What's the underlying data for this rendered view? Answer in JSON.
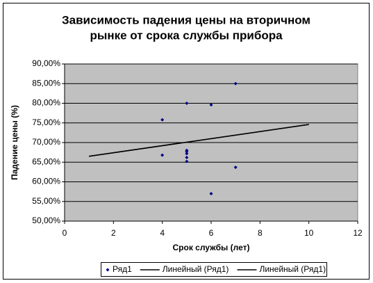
{
  "chart_data": {
    "type": "scatter",
    "title": [
      "Зависимость падения цены на вторичном",
      "рынке от срока службы прибора"
    ],
    "x_label": "Срок службы (лет)",
    "y_label": "Падение цены (%)",
    "xlim": [
      0,
      12
    ],
    "xticks": [
      0,
      2,
      4,
      6,
      8,
      10,
      12
    ],
    "ylim": [
      50,
      90
    ],
    "yticks": [
      {
        "value": 50,
        "label": "50,00%"
      },
      {
        "value": 55,
        "label": "55,00%"
      },
      {
        "value": 60,
        "label": "60,00%"
      },
      {
        "value": 65,
        "label": "65,00%"
      },
      {
        "value": 70,
        "label": "70,00%"
      },
      {
        "value": 75,
        "label": "75,00%"
      },
      {
        "value": 80,
        "label": "80,00%"
      },
      {
        "value": 85,
        "label": "85,00%"
      },
      {
        "value": 90,
        "label": "90,00%"
      }
    ],
    "grid": true,
    "legend": "bottom",
    "series": [
      {
        "name": "Ряд1",
        "color": "#000080",
        "type": "scatter",
        "x": [
          4,
          4,
          5,
          5,
          5,
          5,
          5,
          5,
          6,
          6,
          7,
          7
        ],
        "values": [
          75.8,
          66.8,
          80,
          68,
          67.7,
          67.2,
          66.2,
          65.2,
          79.6,
          57,
          85,
          63.7
        ]
      },
      {
        "name": "Линейный (Ряд1)",
        "color": "#000000",
        "type": "line",
        "x": [
          1,
          10
        ],
        "values": [
          66.5,
          74.6
        ]
      },
      {
        "name": "Линейный (Ряд1)",
        "color": "#000000",
        "type": "line",
        "x": [
          1,
          10
        ],
        "values": [
          66.5,
          74.6
        ]
      }
    ]
  }
}
